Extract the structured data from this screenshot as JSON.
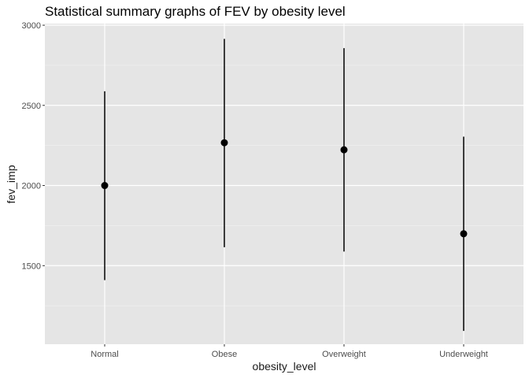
{
  "chart_data": {
    "type": "pointrange",
    "title": "Statistical summary graphs of FEV by obesity level",
    "xlabel": "obesity_level",
    "ylabel": "fev_imp",
    "categories": [
      "Normal",
      "Obese",
      "Overweight",
      "Underweight"
    ],
    "series": [
      {
        "mean": [
          2000,
          2267,
          2223,
          1699
        ],
        "lower": [
          1410,
          1615,
          1588,
          1093
        ],
        "upper": [
          2588,
          2915,
          2857,
          2305
        ]
      }
    ],
    "ylim": [
      1010,
      3010
    ],
    "yticks": [
      1500,
      2000,
      2500,
      3000
    ],
    "yminor": [
      1250,
      1750,
      2250,
      2750
    ],
    "grid": true,
    "legend": "none",
    "colors": {
      "panel": "#e5e5e5",
      "grid_major": "#ffffff",
      "grid_minor": "#f2f2f2",
      "point": "#000000",
      "text": "#1a1a1a",
      "tick_text": "#4d4d4d"
    }
  }
}
